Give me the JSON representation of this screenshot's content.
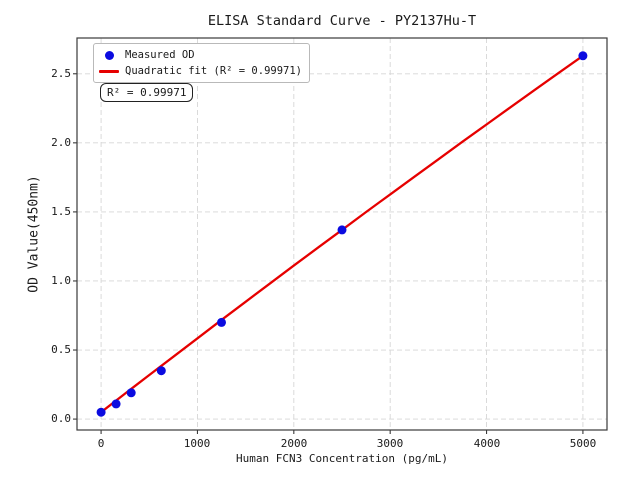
{
  "figure": {
    "title": "ELISA Standard Curve - PY2137Hu-T",
    "xlabel": "Human FCN3 Concentration (pg/mL)",
    "ylabel": "OD Value(450nm)",
    "annotation": "R² = 0.99971",
    "background_color": "#ffffff"
  },
  "legend": {
    "items": [
      {
        "label": "Measured OD",
        "marker": "dot",
        "color": "#0b0be0"
      },
      {
        "label": "Quadratic fit (R² = 0.99971)",
        "marker": "line",
        "color": "#e60000"
      }
    ]
  },
  "chart_data": {
    "type": "scatter",
    "title": "ELISA Standard Curve - PY2137Hu-T",
    "xlabel": "Human FCN3 Concentration (pg/mL)",
    "ylabel": "OD Value(450nm)",
    "xlim": [
      -250,
      5250
    ],
    "ylim": [
      -0.079,
      2.759
    ],
    "x_ticks": [
      0,
      1000,
      2000,
      3000,
      4000,
      5000
    ],
    "x_tick_labels": [
      "0",
      "1000",
      "2000",
      "3000",
      "4000",
      "5000"
    ],
    "y_ticks": [
      0.0,
      0.5,
      1.0,
      1.5,
      2.0,
      2.5
    ],
    "y_tick_labels": [
      "0.0",
      "0.5",
      "1.0",
      "1.5",
      "2.0",
      "2.5"
    ],
    "grid": {
      "visible": true,
      "style": "dashed",
      "color": "#d6d6d6"
    },
    "legend_position": "upper left",
    "r_squared": 0.99971,
    "series": [
      {
        "name": "Measured OD",
        "type": "scatter",
        "color": "#0b0be0",
        "x": [
          0,
          156.25,
          312.5,
          625,
          1250,
          2500,
          5000
        ],
        "y": [
          0.05,
          0.11,
          0.19,
          0.35,
          0.7,
          1.37,
          2.63
        ]
      },
      {
        "name": "Quadratic fit (R² = 0.99971)",
        "type": "line",
        "color": "#e60000",
        "x": [
          0,
          250,
          500,
          750,
          1000,
          1250,
          1500,
          1750,
          2000,
          2250,
          2500,
          2750,
          3000,
          3250,
          3500,
          3750,
          4000,
          4250,
          4500,
          4750,
          5000
        ],
        "y": [
          0.05,
          0.185,
          0.319,
          0.452,
          0.585,
          0.718,
          0.849,
          0.98,
          1.111,
          1.241,
          1.37,
          1.499,
          1.627,
          1.754,
          1.881,
          2.008,
          2.133,
          2.258,
          2.383,
          2.507,
          2.63
        ]
      }
    ]
  }
}
